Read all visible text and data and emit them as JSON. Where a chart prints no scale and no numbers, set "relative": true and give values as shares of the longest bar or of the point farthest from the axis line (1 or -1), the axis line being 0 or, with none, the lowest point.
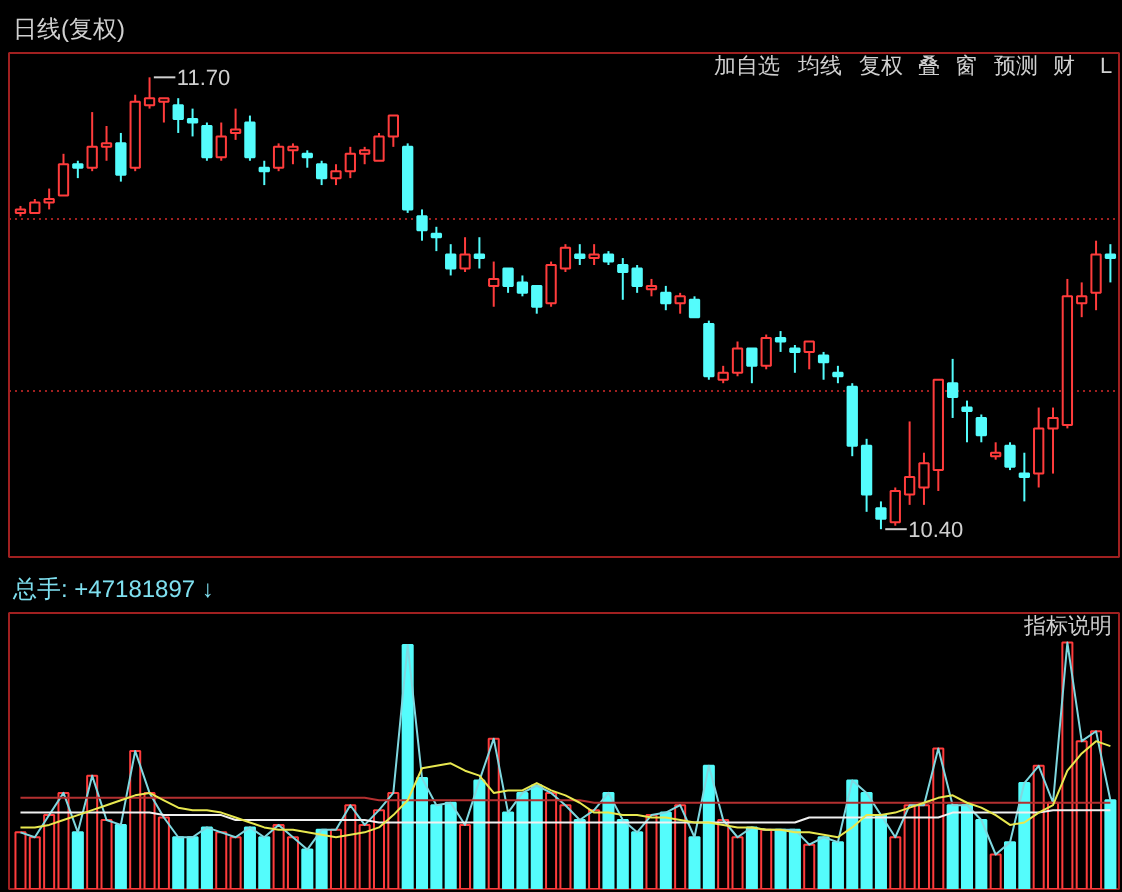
{
  "chart_data": [
    {
      "type": "candlestick",
      "title": "日线(复权)",
      "categories": [
        null,
        null,
        null,
        null,
        null,
        null,
        null,
        null,
        null,
        null,
        null,
        null,
        null,
        null,
        null,
        null,
        null,
        null,
        null,
        null,
        null,
        null,
        null,
        null,
        null,
        null,
        null,
        null,
        null,
        null,
        null,
        null,
        null,
        null,
        null,
        null,
        null,
        null,
        null,
        null,
        null,
        null,
        null,
        null,
        null,
        null,
        null,
        null,
        null,
        null,
        null,
        null,
        null,
        null,
        null,
        null,
        null,
        null,
        null,
        null,
        null,
        null,
        null,
        null,
        null,
        null,
        null,
        null,
        null,
        null,
        null,
        null,
        null,
        null,
        null,
        null,
        null
      ],
      "ohlc": [
        [
          11.31,
          11.33,
          11.3,
          11.32
        ],
        [
          11.31,
          11.35,
          11.31,
          11.34
        ],
        [
          11.34,
          11.38,
          11.32,
          11.35
        ],
        [
          11.36,
          11.48,
          11.36,
          11.45
        ],
        [
          11.45,
          11.46,
          11.41,
          11.44
        ],
        [
          11.44,
          11.6,
          11.43,
          11.5
        ],
        [
          11.5,
          11.56,
          11.46,
          11.51
        ],
        [
          11.51,
          11.54,
          11.4,
          11.42
        ],
        [
          11.44,
          11.65,
          11.43,
          11.63
        ],
        [
          11.62,
          11.7,
          11.61,
          11.64
        ],
        [
          11.63,
          11.64,
          11.57,
          11.64
        ],
        [
          11.62,
          11.64,
          11.54,
          11.58
        ],
        [
          11.58,
          11.61,
          11.53,
          11.57
        ],
        [
          11.56,
          11.57,
          11.46,
          11.47
        ],
        [
          11.47,
          11.57,
          11.46,
          11.53
        ],
        [
          11.54,
          11.61,
          11.52,
          11.55
        ],
        [
          11.57,
          11.59,
          11.46,
          11.47
        ],
        [
          11.44,
          11.46,
          11.39,
          11.43
        ],
        [
          11.44,
          11.51,
          11.43,
          11.5
        ],
        [
          11.49,
          11.51,
          11.45,
          11.5
        ],
        [
          11.48,
          11.49,
          11.44,
          11.47
        ],
        [
          11.45,
          11.46,
          11.39,
          11.41
        ],
        [
          11.41,
          11.45,
          11.39,
          11.43
        ],
        [
          11.43,
          11.5,
          11.41,
          11.48
        ],
        [
          11.48,
          11.5,
          11.45,
          11.49
        ],
        [
          11.46,
          11.54,
          11.46,
          11.53
        ],
        [
          11.53,
          11.59,
          11.5,
          11.59
        ],
        [
          11.5,
          11.51,
          11.31,
          11.32
        ],
        [
          11.3,
          11.32,
          11.23,
          11.26
        ],
        [
          11.25,
          11.27,
          11.2,
          11.24
        ],
        [
          11.19,
          11.22,
          11.13,
          11.15
        ],
        [
          11.15,
          11.24,
          11.14,
          11.19
        ],
        [
          11.19,
          11.24,
          11.15,
          11.18
        ],
        [
          11.1,
          11.17,
          11.04,
          11.12
        ],
        [
          11.15,
          11.15,
          11.08,
          11.1
        ],
        [
          11.11,
          11.13,
          11.07,
          11.08
        ],
        [
          11.1,
          11.1,
          11.02,
          11.04
        ],
        [
          11.05,
          11.17,
          11.04,
          11.16
        ],
        [
          11.15,
          11.22,
          11.14,
          11.21
        ],
        [
          11.19,
          11.22,
          11.16,
          11.18
        ],
        [
          11.18,
          11.22,
          11.16,
          11.19
        ],
        [
          11.19,
          11.2,
          11.16,
          11.17
        ],
        [
          11.16,
          11.18,
          11.06,
          11.14
        ],
        [
          11.15,
          11.16,
          11.08,
          11.1
        ],
        [
          11.09,
          11.12,
          11.07,
          11.1
        ],
        [
          11.08,
          11.1,
          11.03,
          11.05
        ],
        [
          11.05,
          11.08,
          11.02,
          11.07
        ],
        [
          11.06,
          11.07,
          11.01,
          11.01
        ],
        [
          10.99,
          11.0,
          10.83,
          10.84
        ],
        [
          10.83,
          10.87,
          10.82,
          10.85
        ],
        [
          10.85,
          10.94,
          10.84,
          10.92
        ],
        [
          10.92,
          10.92,
          10.82,
          10.87
        ],
        [
          10.87,
          10.96,
          10.86,
          10.95
        ],
        [
          10.95,
          10.97,
          10.91,
          10.94
        ],
        [
          10.92,
          10.93,
          10.85,
          10.91
        ],
        [
          10.91,
          10.94,
          10.86,
          10.94
        ],
        [
          10.9,
          10.91,
          10.83,
          10.88
        ],
        [
          10.85,
          10.87,
          10.82,
          10.84
        ],
        [
          10.81,
          10.82,
          10.61,
          10.64
        ],
        [
          10.64,
          10.66,
          10.45,
          10.5
        ],
        [
          10.46,
          10.48,
          10.4,
          10.43
        ],
        [
          10.42,
          10.52,
          10.41,
          10.51
        ],
        [
          10.5,
          10.71,
          10.47,
          10.55
        ],
        [
          10.52,
          10.62,
          10.47,
          10.59
        ],
        [
          10.57,
          10.83,
          10.51,
          10.83
        ],
        [
          10.82,
          10.89,
          10.72,
          10.78
        ],
        [
          10.75,
          10.77,
          10.65,
          10.74
        ],
        [
          10.72,
          10.73,
          10.65,
          10.67
        ],
        [
          10.61,
          10.65,
          10.6,
          10.62
        ],
        [
          10.64,
          10.65,
          10.57,
          10.58
        ],
        [
          10.56,
          10.62,
          10.48,
          10.55
        ],
        [
          10.56,
          10.75,
          10.52,
          10.69
        ],
        [
          10.69,
          10.75,
          10.56,
          10.72
        ],
        [
          10.7,
          11.12,
          10.69,
          11.07
        ],
        [
          11.05,
          11.11,
          11.01,
          11.07
        ],
        [
          11.08,
          11.23,
          11.03,
          11.19
        ],
        [
          11.19,
          11.22,
          11.11,
          11.18
        ]
      ],
      "colors": [
        "#ff3c3c",
        "#ff3c3c",
        "#ff3c3c",
        "#ff3c3c",
        "#54fcfc",
        "#ff3c3c",
        "#ff3c3c",
        "#54fcfc",
        "#ff3c3c",
        "#ff3c3c",
        "#ff3c3c",
        "#54fcfc",
        "#54fcfc",
        "#54fcfc",
        "#ff3c3c",
        "#ff3c3c",
        "#54fcfc",
        "#54fcfc",
        "#ff3c3c",
        "#ff3c3c",
        "#54fcfc",
        "#54fcfc",
        "#ff3c3c",
        "#ff3c3c",
        "#ff3c3c",
        "#ff3c3c",
        "#ff3c3c",
        "#54fcfc",
        "#54fcfc",
        "#54fcfc",
        "#54fcfc",
        "#ff3c3c",
        "#54fcfc",
        "#ff3c3c",
        "#54fcfc",
        "#54fcfc",
        "#54fcfc",
        "#ff3c3c",
        "#ff3c3c",
        "#54fcfc",
        "#ff3c3c",
        "#54fcfc",
        "#54fcfc",
        "#54fcfc",
        "#ff3c3c",
        "#54fcfc",
        "#ff3c3c",
        "#54fcfc",
        "#54fcfc",
        "#ff3c3c",
        "#ff3c3c",
        "#54fcfc",
        "#ff3c3c",
        "#54fcfc",
        "#54fcfc",
        "#ff3c3c",
        "#54fcfc",
        "#54fcfc",
        "#54fcfc",
        "#54fcfc",
        "#54fcfc",
        "#ff3c3c",
        "#ff3c3c",
        "#ff3c3c",
        "#ff3c3c",
        "#54fcfc",
        "#54fcfc",
        "#54fcfc",
        "#ff3c3c",
        "#54fcfc",
        "#54fcfc",
        "#ff3c3c",
        "#ff3c3c",
        "#ff3c3c",
        "#ff3c3c",
        "#ff3c3c",
        "#54fcfc"
      ],
      "ylim": [
        10.32,
        11.77
      ],
      "yticks": [
        {
          "value": 10.8,
          "label": null
        },
        {
          "value": 11.29,
          "label": null
        }
      ],
      "grid": "y",
      "tick_labels": false,
      "annotations": [
        "11.70",
        "10.40",
        "加自选",
        "均线",
        "复权",
        "叠",
        "窗",
        "预测",
        "财",
        "L"
      ]
    },
    {
      "type": "bar",
      "title": "总手: +47181897 ↓",
      "relative": true,
      "categories": [
        null,
        null,
        null,
        null,
        null,
        null,
        null,
        null,
        null,
        null,
        null,
        null,
        null,
        null,
        null,
        null,
        null,
        null,
        null,
        null,
        null,
        null,
        null,
        null,
        null,
        null,
        null,
        null,
        null,
        null,
        null,
        null,
        null,
        null,
        null,
        null,
        null,
        null,
        null,
        null,
        null,
        null,
        null,
        null,
        null,
        null,
        null,
        null,
        null,
        null,
        null,
        null,
        null,
        null,
        null,
        null,
        null,
        null,
        null,
        null,
        null,
        null,
        null,
        null,
        null,
        null,
        null,
        null,
        null,
        null,
        null,
        null,
        null,
        null,
        null,
        null,
        null
      ],
      "series": [
        {
          "type": "bar",
          "colors": [
            "#ff3c3c",
            "#ff3c3c",
            "#ff3c3c",
            "#ff3c3c",
            "#54fcfc",
            "#ff3c3c",
            "#ff3c3c",
            "#54fcfc",
            "#ff3c3c",
            "#ff3c3c",
            "#ff3c3c",
            "#54fcfc",
            "#54fcfc",
            "#54fcfc",
            "#ff3c3c",
            "#ff3c3c",
            "#54fcfc",
            "#54fcfc",
            "#ff3c3c",
            "#ff3c3c",
            "#54fcfc",
            "#54fcfc",
            "#ff3c3c",
            "#ff3c3c",
            "#ff3c3c",
            "#ff3c3c",
            "#ff3c3c",
            "#54fcfc",
            "#54fcfc",
            "#54fcfc",
            "#54fcfc",
            "#ff3c3c",
            "#54fcfc",
            "#ff3c3c",
            "#54fcfc",
            "#54fcfc",
            "#54fcfc",
            "#ff3c3c",
            "#ff3c3c",
            "#54fcfc",
            "#ff3c3c",
            "#54fcfc",
            "#54fcfc",
            "#54fcfc",
            "#ff3c3c",
            "#54fcfc",
            "#ff3c3c",
            "#54fcfc",
            "#54fcfc",
            "#ff3c3c",
            "#ff3c3c",
            "#54fcfc",
            "#ff3c3c",
            "#54fcfc",
            "#54fcfc",
            "#ff3c3c",
            "#54fcfc",
            "#54fcfc",
            "#54fcfc",
            "#54fcfc",
            "#54fcfc",
            "#ff3c3c",
            "#ff3c3c",
            "#ff3c3c",
            "#ff3c3c",
            "#54fcfc",
            "#54fcfc",
            "#54fcfc",
            "#ff3c3c",
            "#54fcfc",
            "#54fcfc",
            "#ff3c3c",
            "#ff3c3c",
            "#ff3c3c",
            "#ff3c3c",
            "#ff3c3c",
            "#54fcfc"
          ],
          "values": [
            0.23,
            0.21,
            0.3,
            0.39,
            0.23,
            0.46,
            0.28,
            0.26,
            0.56,
            0.39,
            0.29,
            0.21,
            0.21,
            0.25,
            0.23,
            0.21,
            0.25,
            0.21,
            0.26,
            0.21,
            0.16,
            0.24,
            0.24,
            0.34,
            0.26,
            0.32,
            0.39,
            0.99,
            0.45,
            0.34,
            0.35,
            0.26,
            0.44,
            0.61,
            0.31,
            0.39,
            0.42,
            0.39,
            0.34,
            0.28,
            0.32,
            0.39,
            0.28,
            0.23,
            0.3,
            0.31,
            0.34,
            0.21,
            0.5,
            0.28,
            0.21,
            0.25,
            0.24,
            0.24,
            0.24,
            0.18,
            0.21,
            0.19,
            0.44,
            0.39,
            0.3,
            0.21,
            0.34,
            0.34,
            0.57,
            0.34,
            0.34,
            0.28,
            0.14,
            0.19,
            0.43,
            0.5,
            0.35,
            1,
            0.6,
            0.64,
            0.36
          ]
        },
        {
          "type": "line",
          "color": "#7fd8e0",
          "values": [
            0.23,
            0.21,
            0.3,
            0.39,
            0.23,
            0.46,
            0.28,
            0.26,
            0.56,
            0.39,
            0.29,
            0.21,
            0.21,
            0.25,
            0.23,
            0.21,
            0.25,
            0.21,
            0.26,
            0.21,
            0.16,
            0.24,
            0.24,
            0.34,
            0.26,
            0.32,
            0.39,
            0.99,
            0.45,
            0.34,
            0.35,
            0.26,
            0.44,
            0.61,
            0.31,
            0.39,
            0.42,
            0.39,
            0.34,
            0.28,
            0.32,
            0.39,
            0.28,
            0.23,
            0.3,
            0.31,
            0.34,
            0.21,
            0.5,
            0.28,
            0.21,
            0.25,
            0.24,
            0.24,
            0.24,
            0.18,
            0.21,
            0.19,
            0.44,
            0.39,
            0.3,
            0.21,
            0.34,
            0.34,
            0.57,
            0.34,
            0.34,
            0.28,
            0.14,
            0.19,
            0.43,
            0.5,
            0.35,
            1,
            0.6,
            0.64,
            0.36
          ]
        },
        {
          "type": "line",
          "color": "#b43030",
          "values": [
            0.37,
            0.37,
            0.37,
            0.37,
            0.37,
            0.37,
            0.37,
            0.37,
            0.37,
            0.37,
            0.37,
            0.37,
            0.37,
            0.37,
            0.37,
            0.37,
            0.37,
            0.37,
            0.37,
            0.37,
            0.37,
            0.37,
            0.37,
            0.37,
            0.37,
            0.36,
            0.36,
            0.36,
            0.36,
            0.36,
            0.36,
            0.36,
            0.36,
            0.36,
            0.36,
            0.36,
            0.36,
            0.36,
            0.36,
            0.36,
            0.35,
            0.35,
            0.35,
            0.35,
            0.35,
            0.35,
            0.35,
            0.35,
            0.35,
            0.35,
            0.35,
            0.35,
            0.35,
            0.35,
            0.35,
            0.35,
            0.35,
            0.35,
            0.35,
            0.35,
            0.35,
            0.35,
            0.35,
            0.35,
            0.35,
            0.35,
            0.35,
            0.35,
            0.35,
            0.35,
            0.35,
            0.35,
            0.35,
            0.35,
            0.35,
            0.35,
            0.35
          ]
        },
        {
          "type": "line",
          "color": "#f0f0f0",
          "values": [
            0.31,
            0.31,
            0.31,
            0.31,
            0.31,
            0.31,
            0.31,
            0.31,
            0.31,
            0.31,
            0.3,
            0.3,
            0.3,
            0.3,
            0.3,
            0.28,
            0.28,
            0.28,
            0.28,
            0.28,
            0.28,
            0.28,
            0.28,
            0.28,
            0.28,
            0.27,
            0.27,
            0.27,
            0.27,
            0.27,
            0.27,
            0.27,
            0.27,
            0.27,
            0.27,
            0.27,
            0.27,
            0.27,
            0.27,
            0.27,
            0.27,
            0.27,
            0.27,
            0.27,
            0.27,
            0.27,
            0.27,
            0.27,
            0.27,
            0.27,
            0.27,
            0.27,
            0.27,
            0.27,
            0.27,
            0.29,
            0.29,
            0.29,
            0.29,
            0.29,
            0.29,
            0.29,
            0.29,
            0.29,
            0.29,
            0.31,
            0.31,
            0.31,
            0.31,
            0.31,
            0.31,
            0.31,
            0.32,
            0.32,
            0.32,
            0.32,
            0.32
          ]
        },
        {
          "type": "line",
          "color": "#e8e850",
          "values": [
            0.25,
            0.25,
            0.26,
            0.28,
            0.3,
            0.32,
            0.34,
            0.36,
            0.38,
            0.39,
            0.36,
            0.33,
            0.32,
            0.32,
            0.31,
            0.29,
            0.27,
            0.25,
            0.24,
            0.24,
            0.23,
            0.22,
            0.21,
            0.22,
            0.23,
            0.25,
            0.3,
            0.36,
            0.49,
            0.5,
            0.51,
            0.48,
            0.46,
            0.39,
            0.4,
            0.4,
            0.43,
            0.4,
            0.38,
            0.35,
            0.31,
            0.31,
            0.3,
            0.3,
            0.29,
            0.29,
            0.28,
            0.27,
            0.27,
            0.26,
            0.25,
            0.25,
            0.24,
            0.24,
            0.23,
            0.23,
            0.22,
            0.21,
            0.25,
            0.3,
            0.3,
            0.31,
            0.33,
            0.35,
            0.37,
            0.38,
            0.35,
            0.33,
            0.3,
            0.26,
            0.27,
            0.31,
            0.34,
            0.48,
            0.55,
            0.6,
            0.58
          ]
        }
      ],
      "tick_labels": false,
      "annotations": [
        "指标说明"
      ]
    }
  ]
}
